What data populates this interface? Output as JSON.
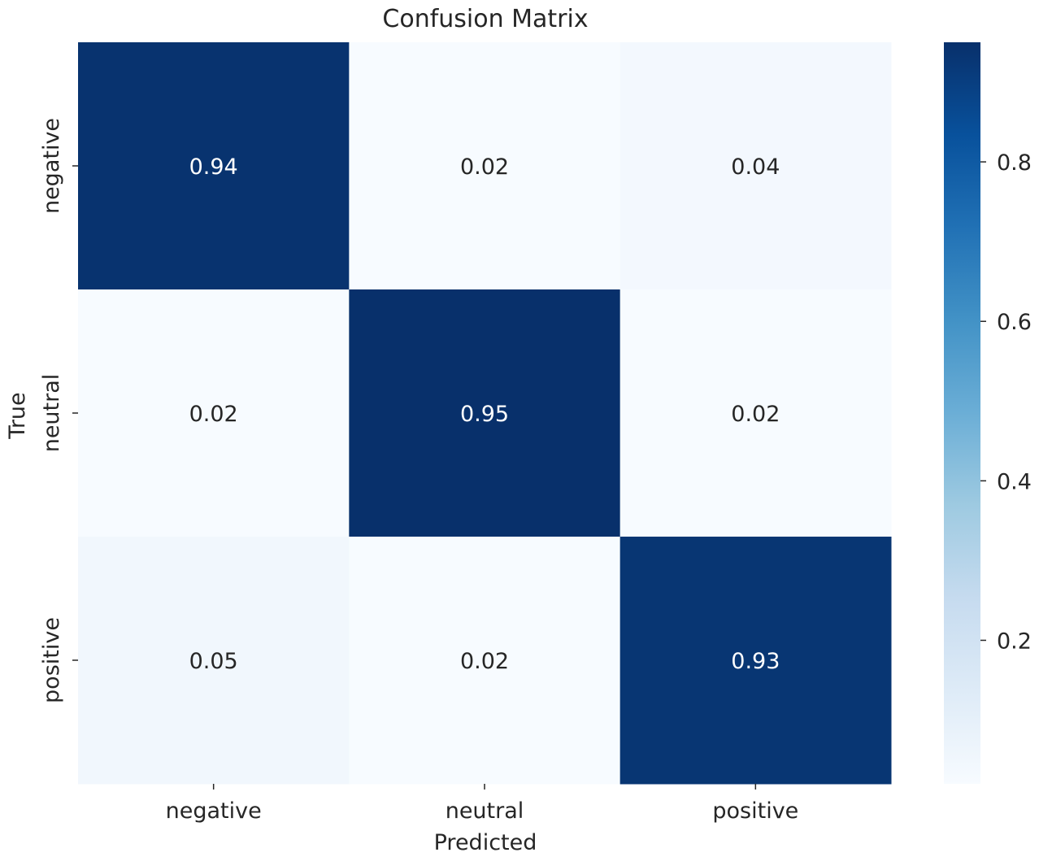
{
  "chart_data": {
    "type": "heatmap",
    "title": "Confusion Matrix",
    "xlabel": "Predicted",
    "ylabel": "True",
    "x_categories": [
      "negative",
      "neutral",
      "positive"
    ],
    "y_categories": [
      "negative",
      "neutral",
      "positive"
    ],
    "values": [
      [
        0.94,
        0.02,
        0.04
      ],
      [
        0.02,
        0.95,
        0.02
      ],
      [
        0.05,
        0.02,
        0.93
      ]
    ],
    "annotations": [
      [
        "0.94",
        "0.02",
        "0.04"
      ],
      [
        "0.02",
        "0.95",
        "0.02"
      ],
      [
        "0.05",
        "0.02",
        "0.93"
      ]
    ],
    "colormap": "Blues",
    "colorbar": {
      "range": [
        0.02,
        0.95
      ],
      "ticks": [
        0.2,
        0.4,
        0.6,
        0.8
      ],
      "tick_labels": [
        "0.2",
        "0.4",
        "0.6",
        "0.8"
      ]
    },
    "colors": {
      "low": "#f7fbff",
      "high": "#08306b",
      "text_light": "#ffffff",
      "text_dark": "#262626"
    }
  }
}
